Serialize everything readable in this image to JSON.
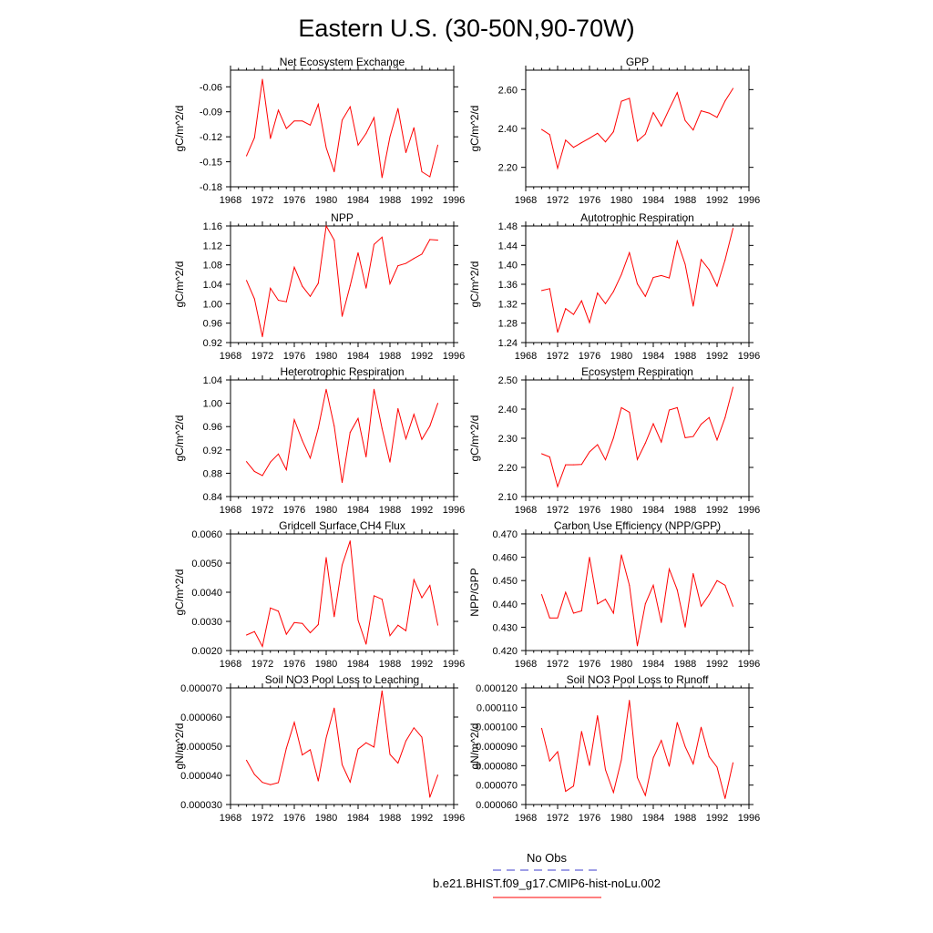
{
  "figure": {
    "title": "Eastern U.S. (30-50N,90-70W)",
    "series_color": "#ff0000",
    "obs_color": "#3c3ccc"
  },
  "legend": {
    "obs_label": "No Obs",
    "case_label": "b.e21.BHIST.f09_g17.CMIP6-hist-noLu.002"
  },
  "chart_data": [
    {
      "type": "line",
      "title": "Net Ecosystem Exchange",
      "ylabel": "gC/m^2/d",
      "xlim": [
        1968,
        1996
      ],
      "xticks": [
        1968,
        1972,
        1976,
        1980,
        1984,
        1988,
        1992,
        1996
      ],
      "ylim": [
        -0.18,
        -0.04
      ],
      "yticks": [
        "-0.06",
        "-0.09",
        "-0.12",
        "-0.15",
        "-0.18"
      ],
      "x": [
        1970,
        1971,
        1972,
        1973,
        1974,
        1975,
        1976,
        1977,
        1978,
        1979,
        1980,
        1981,
        1982,
        1983,
        1984,
        1985,
        1986,
        1987,
        1988,
        1989,
        1990,
        1991,
        1992,
        1993,
        1994
      ],
      "values": [
        -0.143,
        -0.121,
        -0.051,
        -0.122,
        -0.088,
        -0.11,
        -0.101,
        -0.101,
        -0.106,
        -0.081,
        -0.133,
        -0.162,
        -0.1,
        -0.084,
        -0.13,
        -0.116,
        -0.097,
        -0.169,
        -0.12,
        -0.086,
        -0.139,
        -0.109,
        -0.162,
        -0.168,
        -0.13
      ]
    },
    {
      "type": "line",
      "title": "GPP",
      "ylabel": "gC/m^2/d",
      "xlim": [
        1968,
        1996
      ],
      "xticks": [
        1968,
        1972,
        1976,
        1980,
        1984,
        1988,
        1992,
        1996
      ],
      "ylim": [
        2.1,
        2.7
      ],
      "yticks": [
        "2.60",
        "2.40",
        "2.20"
      ],
      "x": [
        1970,
        1971,
        1972,
        1973,
        1974,
        1975,
        1976,
        1977,
        1978,
        1979,
        1980,
        1981,
        1982,
        1983,
        1984,
        1985,
        1986,
        1987,
        1988,
        1989,
        1990,
        1991,
        1992,
        1993,
        1994
      ],
      "values": [
        2.395,
        2.368,
        2.195,
        2.34,
        2.303,
        2.327,
        2.35,
        2.375,
        2.331,
        2.383,
        2.54,
        2.555,
        2.335,
        2.371,
        2.482,
        2.412,
        2.5,
        2.584,
        2.441,
        2.392,
        2.491,
        2.479,
        2.457,
        2.541,
        2.606
      ]
    },
    {
      "type": "line",
      "title": "NPP",
      "ylabel": "gC/m^2/d",
      "xlim": [
        1968,
        1996
      ],
      "xticks": [
        1968,
        1972,
        1976,
        1980,
        1984,
        1988,
        1992,
        1996
      ],
      "ylim": [
        0.92,
        1.16
      ],
      "yticks": [
        "1.16",
        "1.12",
        "1.08",
        "1.04",
        "1.00",
        "0.96",
        "0.92"
      ],
      "x": [
        1970,
        1971,
        1972,
        1973,
        1974,
        1975,
        1976,
        1977,
        1978,
        1979,
        1980,
        1981,
        1982,
        1983,
        1984,
        1985,
        1986,
        1987,
        1988,
        1989,
        1990,
        1991,
        1992,
        1993,
        1994
      ],
      "values": [
        1.048,
        1.01,
        0.932,
        1.032,
        1.007,
        1.004,
        1.075,
        1.036,
        1.015,
        1.042,
        1.16,
        1.131,
        0.974,
        1.037,
        1.105,
        1.032,
        1.122,
        1.137,
        1.041,
        1.078,
        1.083,
        1.093,
        1.102,
        1.132,
        1.131
      ]
    },
    {
      "type": "line",
      "title": "Autotrophic Respiration",
      "ylabel": "gC/m^2/d",
      "xlim": [
        1968,
        1996
      ],
      "xticks": [
        1968,
        1972,
        1976,
        1980,
        1984,
        1988,
        1992,
        1996
      ],
      "ylim": [
        1.24,
        1.48
      ],
      "yticks": [
        "1.48",
        "1.44",
        "1.40",
        "1.36",
        "1.32",
        "1.28",
        "1.24"
      ],
      "x": [
        1970,
        1971,
        1972,
        1973,
        1974,
        1975,
        1976,
        1977,
        1978,
        1979,
        1980,
        1981,
        1982,
        1983,
        1984,
        1985,
        1986,
        1987,
        1988,
        1989,
        1990,
        1991,
        1992,
        1993,
        1994
      ],
      "values": [
        1.347,
        1.351,
        1.261,
        1.31,
        1.298,
        1.326,
        1.281,
        1.342,
        1.32,
        1.345,
        1.38,
        1.425,
        1.361,
        1.335,
        1.374,
        1.378,
        1.373,
        1.449,
        1.401,
        1.315,
        1.411,
        1.39,
        1.356,
        1.41,
        1.475
      ]
    },
    {
      "type": "line",
      "title": "Heterotrophic Respiration",
      "ylabel": "gC/m^2/d",
      "xlim": [
        1968,
        1996
      ],
      "xticks": [
        1968,
        1972,
        1976,
        1980,
        1984,
        1988,
        1992,
        1996
      ],
      "ylim": [
        0.84,
        1.04
      ],
      "yticks": [
        "1.04",
        "1.00",
        "0.96",
        "0.92",
        "0.88",
        "0.84"
      ],
      "x": [
        1970,
        1971,
        1972,
        1973,
        1974,
        1975,
        1976,
        1977,
        1978,
        1979,
        1980,
        1981,
        1982,
        1983,
        1984,
        1985,
        1986,
        1987,
        1988,
        1989,
        1990,
        1991,
        1992,
        1993,
        1994
      ],
      "values": [
        0.9,
        0.883,
        0.876,
        0.899,
        0.913,
        0.886,
        0.972,
        0.936,
        0.906,
        0.957,
        1.024,
        0.961,
        0.864,
        0.95,
        0.974,
        0.908,
        1.024,
        0.957,
        0.899,
        0.991,
        0.939,
        0.981,
        0.938,
        0.961,
        1.0
      ]
    },
    {
      "type": "line",
      "title": "Ecosystem Respiration",
      "ylabel": "gC/m^2/d",
      "xlim": [
        1968,
        1996
      ],
      "xticks": [
        1968,
        1972,
        1976,
        1980,
        1984,
        1988,
        1992,
        1996
      ],
      "ylim": [
        2.1,
        2.5
      ],
      "yticks": [
        "2.50",
        "2.40",
        "2.30",
        "2.20",
        "2.10"
      ],
      "x": [
        1970,
        1971,
        1972,
        1973,
        1974,
        1975,
        1976,
        1977,
        1978,
        1979,
        1980,
        1981,
        1982,
        1983,
        1984,
        1985,
        1986,
        1987,
        1988,
        1989,
        1990,
        1991,
        1992,
        1993,
        1994
      ],
      "values": [
        2.247,
        2.236,
        2.134,
        2.209,
        2.209,
        2.21,
        2.253,
        2.278,
        2.226,
        2.301,
        2.405,
        2.389,
        2.227,
        2.283,
        2.35,
        2.287,
        2.397,
        2.405,
        2.302,
        2.306,
        2.348,
        2.371,
        2.294,
        2.371,
        2.475
      ]
    },
    {
      "type": "line",
      "title": "Gridcell Surface CH4 Flux",
      "ylabel": "gC/m^2/d",
      "xlim": [
        1968,
        1996
      ],
      "xticks": [
        1968,
        1972,
        1976,
        1980,
        1984,
        1988,
        1992,
        1996
      ],
      "ylim": [
        0.002,
        0.006
      ],
      "yticks": [
        "0.0060",
        "0.0050",
        "0.0040",
        "0.0030",
        "0.0020"
      ],
      "x": [
        1970,
        1971,
        1972,
        1973,
        1974,
        1975,
        1976,
        1977,
        1978,
        1979,
        1980,
        1981,
        1982,
        1983,
        1984,
        1985,
        1986,
        1987,
        1988,
        1989,
        1990,
        1991,
        1992,
        1993,
        1994
      ],
      "values": [
        0.00253,
        0.00265,
        0.00214,
        0.00346,
        0.00335,
        0.00256,
        0.00296,
        0.00293,
        0.00261,
        0.00289,
        0.00519,
        0.00316,
        0.00493,
        0.00576,
        0.00304,
        0.00222,
        0.00388,
        0.00376,
        0.00251,
        0.00287,
        0.00268,
        0.00443,
        0.00381,
        0.00423,
        0.00287
      ]
    },
    {
      "type": "line",
      "title": "Carbon Use Efficiency (NPP/GPP)",
      "ylabel": "NPP/GPP",
      "xlim": [
        1968,
        1996
      ],
      "xticks": [
        1968,
        1972,
        1976,
        1980,
        1984,
        1988,
        1992,
        1996
      ],
      "ylim": [
        0.42,
        0.47
      ],
      "yticks": [
        "0.470",
        "0.460",
        "0.450",
        "0.440",
        "0.430",
        "0.420"
      ],
      "x": [
        1970,
        1971,
        1972,
        1973,
        1974,
        1975,
        1976,
        1977,
        1978,
        1979,
        1980,
        1981,
        1982,
        1983,
        1984,
        1985,
        1986,
        1987,
        1988,
        1989,
        1990,
        1991,
        1992,
        1993,
        1994
      ],
      "values": [
        0.444,
        0.434,
        0.434,
        0.445,
        0.436,
        0.437,
        0.46,
        0.44,
        0.442,
        0.436,
        0.461,
        0.448,
        0.422,
        0.44,
        0.448,
        0.432,
        0.455,
        0.446,
        0.43,
        0.453,
        0.439,
        0.444,
        0.45,
        0.448,
        0.439
      ]
    },
    {
      "type": "line",
      "title": "Soil NO3 Pool Loss to Leaching",
      "ylabel": "gN/m^2/d",
      "xlim": [
        1968,
        1996
      ],
      "xticks": [
        1968,
        1972,
        1976,
        1980,
        1984,
        1988,
        1992,
        1996
      ],
      "ylim": [
        3e-05,
        7e-05
      ],
      "yticks": [
        "0.000070",
        "0.000060",
        "0.000050",
        "0.000040",
        "0.000030"
      ],
      "x": [
        1970,
        1971,
        1972,
        1973,
        1974,
        1975,
        1976,
        1977,
        1978,
        1979,
        1980,
        1981,
        1982,
        1983,
        1984,
        1985,
        1986,
        1987,
        1988,
        1989,
        1990,
        1991,
        1992,
        1993,
        1994
      ],
      "values": [
        4.52e-05,
        4.03e-05,
        3.76e-05,
        3.68e-05,
        3.75e-05,
        4.93e-05,
        5.82e-05,
        4.7e-05,
        4.88e-05,
        3.81e-05,
        5.29e-05,
        6.31e-05,
        4.37e-05,
        3.77e-05,
        4.9e-05,
        5.12e-05,
        4.97e-05,
        6.9e-05,
        4.72e-05,
        4.42e-05,
        5.18e-05,
        5.63e-05,
        5.31e-05,
        3.25e-05,
        4.01e-05
      ]
    },
    {
      "type": "line",
      "title": "Soil NO3 Pool Loss to Runoff",
      "ylabel": "gN/m^2/d",
      "xlim": [
        1968,
        1996
      ],
      "xticks": [
        1968,
        1972,
        1976,
        1980,
        1984,
        1988,
        1992,
        1996
      ],
      "ylim": [
        6e-05,
        0.00012
      ],
      "yticks": [
        "0.000120",
        "0.000110",
        "0.000100",
        "0.000090",
        "0.000080",
        "0.000070",
        "0.000060"
      ],
      "x": [
        1970,
        1971,
        1972,
        1973,
        1974,
        1975,
        1976,
        1977,
        1978,
        1979,
        1980,
        1981,
        1982,
        1983,
        1984,
        1985,
        1986,
        1987,
        1988,
        1989,
        1990,
        1991,
        1992,
        1993,
        1994
      ],
      "values": [
        9.92e-05,
        8.24e-05,
        8.72e-05,
        6.68e-05,
        6.95e-05,
        9.76e-05,
        8.01e-05,
        0.0001057,
        7.79e-05,
        6.62e-05,
        8.3e-05,
        0.0001136,
        7.39e-05,
        6.47e-05,
        8.4e-05,
        9.3e-05,
        7.97e-05,
        0.0001022,
        8.98e-05,
        8.09e-05,
        9.98e-05,
        8.46e-05,
        7.92e-05,
        6.31e-05,
        8.15e-05
      ]
    }
  ]
}
